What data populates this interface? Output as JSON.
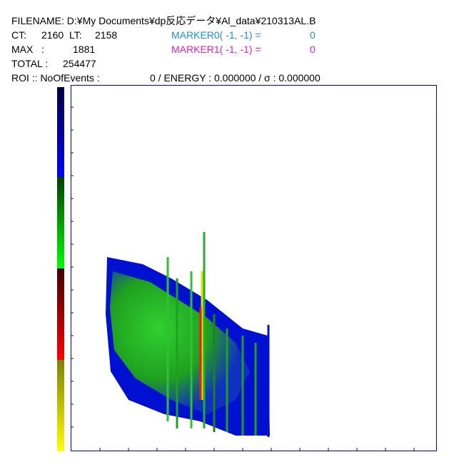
{
  "header": {
    "filename": "FILENAME: D:¥My Documents¥dp反応データ¥Al_data¥210313AL.B",
    "ct_label": "CT:",
    "ct_value": "2160",
    "lt_label": "LT:",
    "lt_value": "2158",
    "max_label": "MAX   :",
    "max_value": "1881",
    "total_label": "TOTAL :",
    "total_value": "254477",
    "roi_label": "ROI :: NoOfEvents :",
    "roi_value": "0 / ENERGY : 0.000000 / σ  : 0.000000",
    "marker0_label": "MARKER0( -1, -1) =",
    "marker0_value": "0",
    "marker1_label": "MARKER1( -1, -1) =",
    "marker1_value": "0"
  }
}
